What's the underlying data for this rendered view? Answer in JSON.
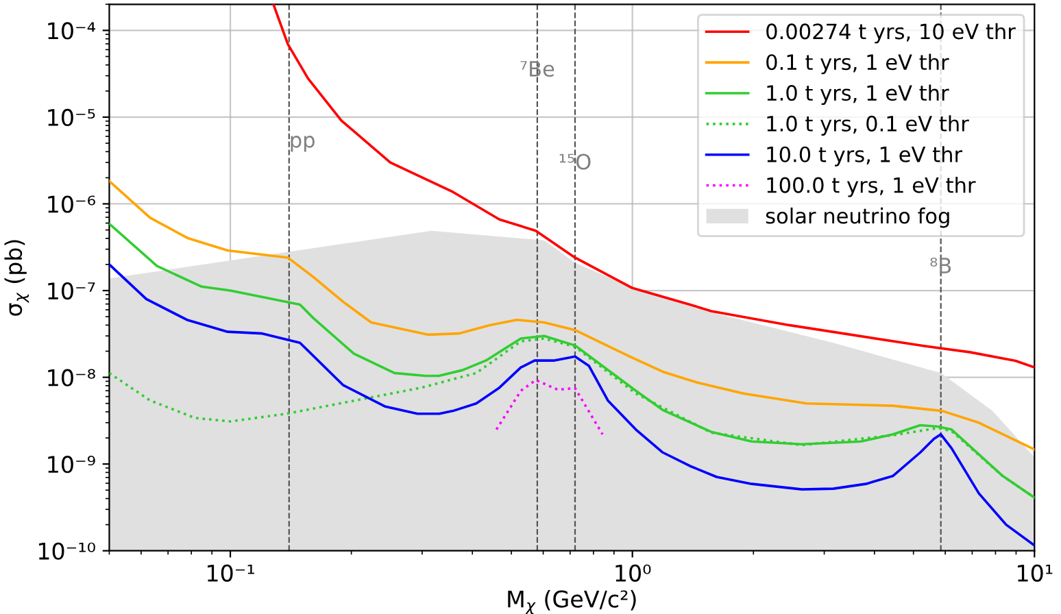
{
  "chart_data": {
    "type": "line",
    "xlabel": "M$_{χ}$ (GeV/c²)",
    "ylabel": "σ$_{χ}$ (pb)",
    "log": "xy",
    "grid": true,
    "legend": "top right",
    "marker": "none",
    "xlim": [
      0.05,
      10
    ],
    "ylim": [
      1e-10,
      0.0002
    ],
    "xticks": [
      {
        "value": 0.1,
        "label": "10⁻¹"
      },
      {
        "value": 1,
        "label": "10⁰"
      },
      {
        "value": 10,
        "label": "10¹"
      }
    ],
    "yticks": [
      {
        "value": 1e-10,
        "label": "10⁻¹⁰"
      },
      {
        "value": 1e-09,
        "label": "10⁻⁹"
      },
      {
        "value": 1e-08,
        "label": "10⁻⁸"
      },
      {
        "value": 1e-07,
        "label": "10⁻⁷"
      },
      {
        "value": 1e-06,
        "label": "10⁻⁶"
      },
      {
        "value": 1e-05,
        "label": "10⁻⁵"
      },
      {
        "value": 0.0001,
        "label": "10⁻⁴"
      }
    ],
    "series": [
      {
        "name": "0.00274 t yrs, 10 eV thr",
        "color": "#ff0000",
        "line_style": "solid",
        "x": [
          0.128,
          0.139,
          0.156,
          0.189,
          0.25,
          0.358,
          0.467,
          0.575,
          0.72,
          1.0,
          1.39,
          1.57,
          2.45,
          5.3,
          6.9,
          8.97,
          10
        ],
        "values": [
          0.0002,
          6.95e-05,
          2.8e-05,
          9.1e-06,
          3e-06,
          1.37e-06,
          6.6e-07,
          4.9e-07,
          2.4e-07,
          1.07e-07,
          6.9e-08,
          5.8e-08,
          4e-08,
          2.3e-08,
          1.95e-08,
          1.55e-08,
          1.3e-08
        ]
      },
      {
        "name": "0.1 t yrs, 1 eV thr",
        "color": "#ffa500",
        "line_style": "solid",
        "x": [
          0.05,
          0.0632,
          0.0786,
          0.0985,
          0.139,
          0.161,
          0.191,
          0.224,
          0.311,
          0.37,
          0.442,
          0.516,
          0.603,
          0.72,
          0.984,
          1.19,
          1.45,
          1.89,
          2.71,
          4.45,
          5.89,
          7.27,
          10
        ],
        "values": [
          1.83e-06,
          6.9e-07,
          4e-07,
          2.9e-07,
          2.4e-07,
          1.43e-07,
          7.4e-08,
          4.3e-08,
          3.1e-08,
          3.2e-08,
          4e-08,
          4.6e-08,
          4.3e-08,
          3.5e-08,
          1.74e-08,
          1.16e-08,
          8.7e-09,
          6.5e-09,
          5e-09,
          4.7e-09,
          4.1e-09,
          3e-09,
          1.47e-09
        ]
      },
      {
        "name": "1.0 t yrs, 1 eV thr",
        "color": "#32cd32",
        "line_style": "solid",
        "x": [
          0.05,
          0.0657,
          0.0849,
          0.1,
          0.149,
          0.161,
          0.203,
          0.256,
          0.306,
          0.33,
          0.378,
          0.432,
          0.528,
          0.603,
          0.72,
          1.02,
          1.19,
          1.57,
          1.98,
          2.64,
          3.7,
          4.45,
          5.2,
          5.75,
          6.22,
          8.3,
          10
        ],
        "values": [
          5.9e-07,
          1.92e-07,
          1.11e-07,
          1e-07,
          6.9e-08,
          4.8e-08,
          1.87e-08,
          1.12e-08,
          1.04e-08,
          1.04e-08,
          1.21e-08,
          1.56e-08,
          2.8e-08,
          3e-08,
          2.33e-08,
          7e-09,
          4.2e-09,
          2.35e-09,
          1.82e-09,
          1.69e-09,
          1.82e-09,
          2.2e-09,
          2.8e-09,
          2.7e-09,
          2.5e-09,
          7.4e-10,
          4.1e-10
        ]
      },
      {
        "name": "1.0 t yrs, 0.1 eV thr",
        "color": "#32cd32",
        "line_style": "dotted",
        "x": [
          0.05,
          0.0632,
          0.0817,
          0.1,
          0.138,
          0.299,
          0.409,
          0.528,
          0.603,
          0.72,
          1.02,
          1.57,
          2.64,
          4.45,
          5.75,
          6.22,
          8.3,
          10
        ],
        "values": [
          1.12e-08,
          5.4e-09,
          3.4e-09,
          3.1e-09,
          3.8e-09,
          7.6e-09,
          1.12e-08,
          2.6e-08,
          2.8e-08,
          2.25e-08,
          6.5e-09,
          2.3e-09,
          1.65e-09,
          2.15e-09,
          2.6e-09,
          2.4e-09,
          7.4e-10,
          4.1e-10
        ]
      },
      {
        "name": "10.0 t yrs, 1 eV thr",
        "color": "#0000ff",
        "line_style": "solid",
        "x": [
          0.05,
          0.0618,
          0.078,
          0.0985,
          0.12,
          0.149,
          0.191,
          0.243,
          0.292,
          0.331,
          0.358,
          0.409,
          0.467,
          0.528,
          0.571,
          0.637,
          0.72,
          0.78,
          0.869,
          1.02,
          1.19,
          1.39,
          1.62,
          1.98,
          2.64,
          3.16,
          3.81,
          4.45,
          5.2,
          5.62,
          5.85,
          6.22,
          7.27,
          8.5,
          10
        ],
        "values": [
          2e-07,
          8e-08,
          4.6e-08,
          3.35e-08,
          3.2e-08,
          2.5e-08,
          8.1e-09,
          4.6e-09,
          3.8e-09,
          3.8e-09,
          4.1e-09,
          5e-09,
          7.6e-09,
          1.3e-08,
          1.56e-08,
          1.56e-08,
          1.74e-08,
          1.35e-08,
          5.4e-09,
          2.5e-09,
          1.36e-09,
          9.5e-10,
          7.1e-10,
          5.9e-10,
          5.1e-10,
          5.2e-10,
          5.9e-10,
          7.3e-10,
          1.36e-09,
          1.95e-09,
          2.2e-09,
          1.52e-09,
          4.6e-10,
          2e-10,
          1.15e-10
        ]
      },
      {
        "name": "100.0 t yrs, 1 eV thr",
        "color": "#ff00ff",
        "line_style": "dotted",
        "x": [
          0.459,
          0.528,
          0.575,
          0.652,
          0.72,
          0.843
        ],
        "values": [
          2.5e-09,
          7e-09,
          9.3e-09,
          7.2e-09,
          7.5e-09,
          2.2e-09
        ]
      },
      {
        "type": "area",
        "name": "solar neutrino fog",
        "color": "#e0e0e0",
        "x": [
          0.05,
          0.316,
          0.603,
          0.72,
          1.0,
          1.53,
          3.16,
          5.85,
          7.86,
          10
        ],
        "values": [
          1.38e-07,
          4.9e-07,
          3.8e-07,
          2.1e-07,
          1.07e-07,
          5.8e-08,
          2.5e-08,
          1.12e-08,
          4.1e-09,
          1.2e-09
        ]
      }
    ],
    "ref_lines": [
      {
        "axis": "x",
        "value": 0.14,
        "label": "pp",
        "color": "#555555",
        "line_style": "dashed"
      },
      {
        "axis": "x",
        "value": 0.58,
        "label": "⁷Be",
        "color": "#555555",
        "line_style": "dashed"
      },
      {
        "axis": "x",
        "value": 0.72,
        "label": "¹⁵O",
        "color": "#555555",
        "line_style": "dashed"
      },
      {
        "axis": "x",
        "value": 5.85,
        "label": "⁸B",
        "color": "#555555",
        "line_style": "dashed"
      }
    ]
  }
}
